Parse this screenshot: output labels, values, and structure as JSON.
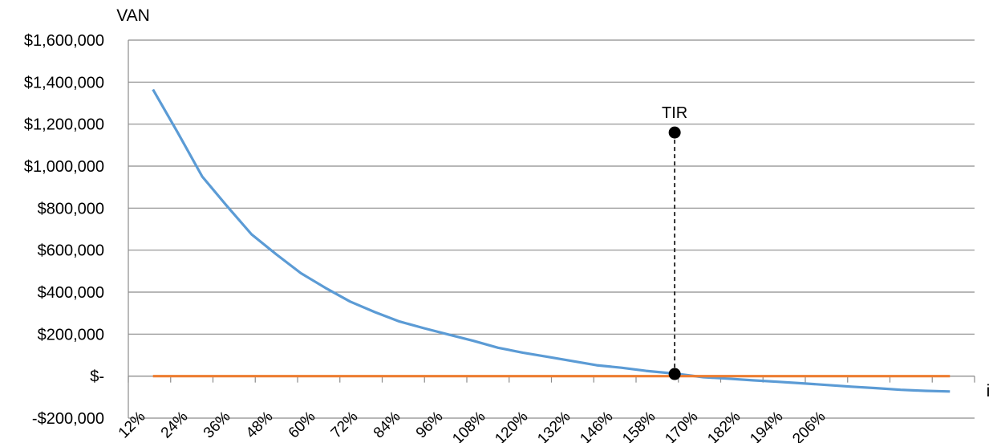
{
  "chart_data": {
    "type": "line",
    "ylabel": "VAN",
    "xlabel": "i",
    "ylim": [
      -200000,
      1600000
    ],
    "ytick_values": [
      -200000,
      0,
      200000,
      400000,
      600000,
      800000,
      1000000,
      1200000,
      1400000,
      1600000
    ],
    "ytick_labels": [
      "-$200,000",
      "$-",
      "$200,000",
      "$400,000",
      "$600,000",
      "$800,000",
      "$1,000,000",
      "$1,200,000",
      "$1,400,000",
      "$1,600,000"
    ],
    "x_tick_labels": [
      "12%",
      "24%",
      "36%",
      "48%",
      "60%",
      "72%",
      "84%",
      "96%",
      "108%",
      "120%",
      "132%",
      "146%",
      "158%",
      "170%",
      "182%",
      "194%",
      "206%"
    ],
    "grid": true,
    "series": [
      {
        "color": "#5b9bd5",
        "x": [
          12,
          18,
          24,
          30,
          36,
          42,
          48,
          54,
          60,
          66,
          72,
          78,
          84,
          90,
          96,
          102,
          108,
          114,
          120,
          126,
          132,
          139,
          146,
          152,
          158,
          164,
          170,
          176,
          182,
          188,
          194,
          200,
          206
        ],
        "y": [
          1365000,
          1160000,
          950000,
          810000,
          675000,
          580000,
          490000,
          420000,
          355000,
          305000,
          260000,
          228000,
          198000,
          168000,
          135000,
          112000,
          92000,
          72000,
          52000,
          40000,
          25000,
          12000,
          -5000,
          -12000,
          -20000,
          -27000,
          -34000,
          -42000,
          -50000,
          -57000,
          -65000,
          -70000,
          -73000
        ]
      },
      {
        "color": "#ed7d31",
        "x": [
          12,
          206
        ],
        "y": [
          0,
          0
        ]
      }
    ],
    "annotations": [
      {
        "text": "TIR",
        "x": 139,
        "y_top": 1160000,
        "y_bottom": 10000
      }
    ]
  }
}
